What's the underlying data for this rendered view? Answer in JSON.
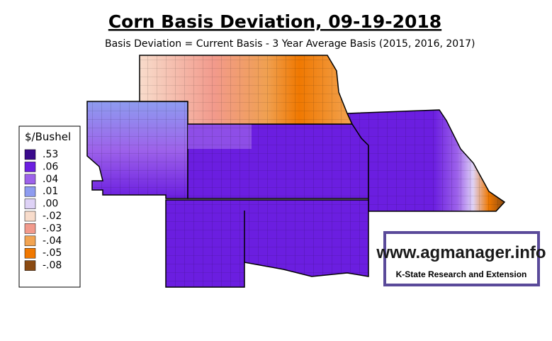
{
  "header": {
    "title": "Corn Basis Deviation, 09-19-2018",
    "subtitle": "Basis Deviation = Current Basis - 3 Year Average Basis (2015, 2016, 2017)"
  },
  "legend": {
    "title": "$/Bushel",
    "items": [
      {
        "label": ".53",
        "color": "#3a0a8c"
      },
      {
        "label": ".06",
        "color": "#6b1ee0"
      },
      {
        "label": ".04",
        "color": "#9d62ea"
      },
      {
        "label": ".01",
        "color": "#8e9cf0"
      },
      {
        "label": ".00",
        "color": "#ded2f6"
      },
      {
        "label": "-.02",
        "color": "#f8dccb"
      },
      {
        "label": "-.03",
        "color": "#f29a8c"
      },
      {
        "label": "-.04",
        "color": "#f2a452"
      },
      {
        "label": "-.05",
        "color": "#f07800"
      },
      {
        "label": "-.08",
        "color": "#8a4a12"
      }
    ]
  },
  "logo": {
    "url": "www.agmanager.info",
    "tagline": "K-State Research and Extension"
  }
}
